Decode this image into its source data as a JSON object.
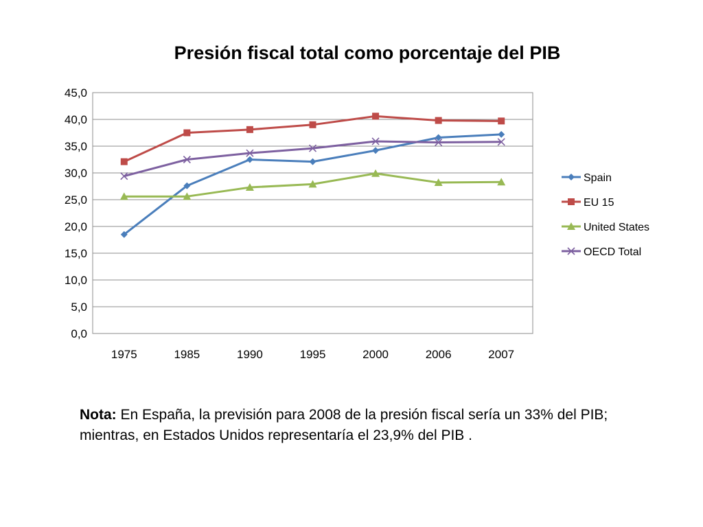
{
  "chart_data": {
    "type": "line",
    "title": "Presión fiscal total como porcentaje del PIB",
    "categories": [
      "1975",
      "1985",
      "1990",
      "1995",
      "2000",
      "2006",
      "2007"
    ],
    "y_ticks": [
      "0,0",
      "5,0",
      "10,0",
      "15,0",
      "20,0",
      "25,0",
      "30,0",
      "35,0",
      "40,0",
      "45,0"
    ],
    "ylim": [
      0,
      45
    ],
    "grid": true,
    "legend_position": "right",
    "series": [
      {
        "name": "Spain",
        "color": "#4a7ebb",
        "marker": "diamond",
        "values": [
          18.5,
          27.6,
          32.5,
          32.1,
          34.2,
          36.6,
          37.2
        ]
      },
      {
        "name": "EU 15",
        "color": "#be4b48",
        "marker": "square",
        "values": [
          32.1,
          37.5,
          38.1,
          39.0,
          40.6,
          39.8,
          39.7
        ]
      },
      {
        "name": "United States",
        "color": "#98b954",
        "marker": "triangle",
        "values": [
          25.6,
          25.6,
          27.3,
          27.9,
          29.9,
          28.2,
          28.3
        ]
      },
      {
        "name": "OECD Total",
        "color": "#7d60a0",
        "marker": "x",
        "values": [
          29.4,
          32.5,
          33.7,
          34.6,
          35.9,
          35.7,
          35.8
        ]
      }
    ]
  },
  "note": {
    "label": "Nota:",
    "text": " En España, la previsión para 2008 de la presión fiscal sería un 33% del PIB; mientras, en Estados Unidos representaría el 23,9% del PIB ."
  }
}
